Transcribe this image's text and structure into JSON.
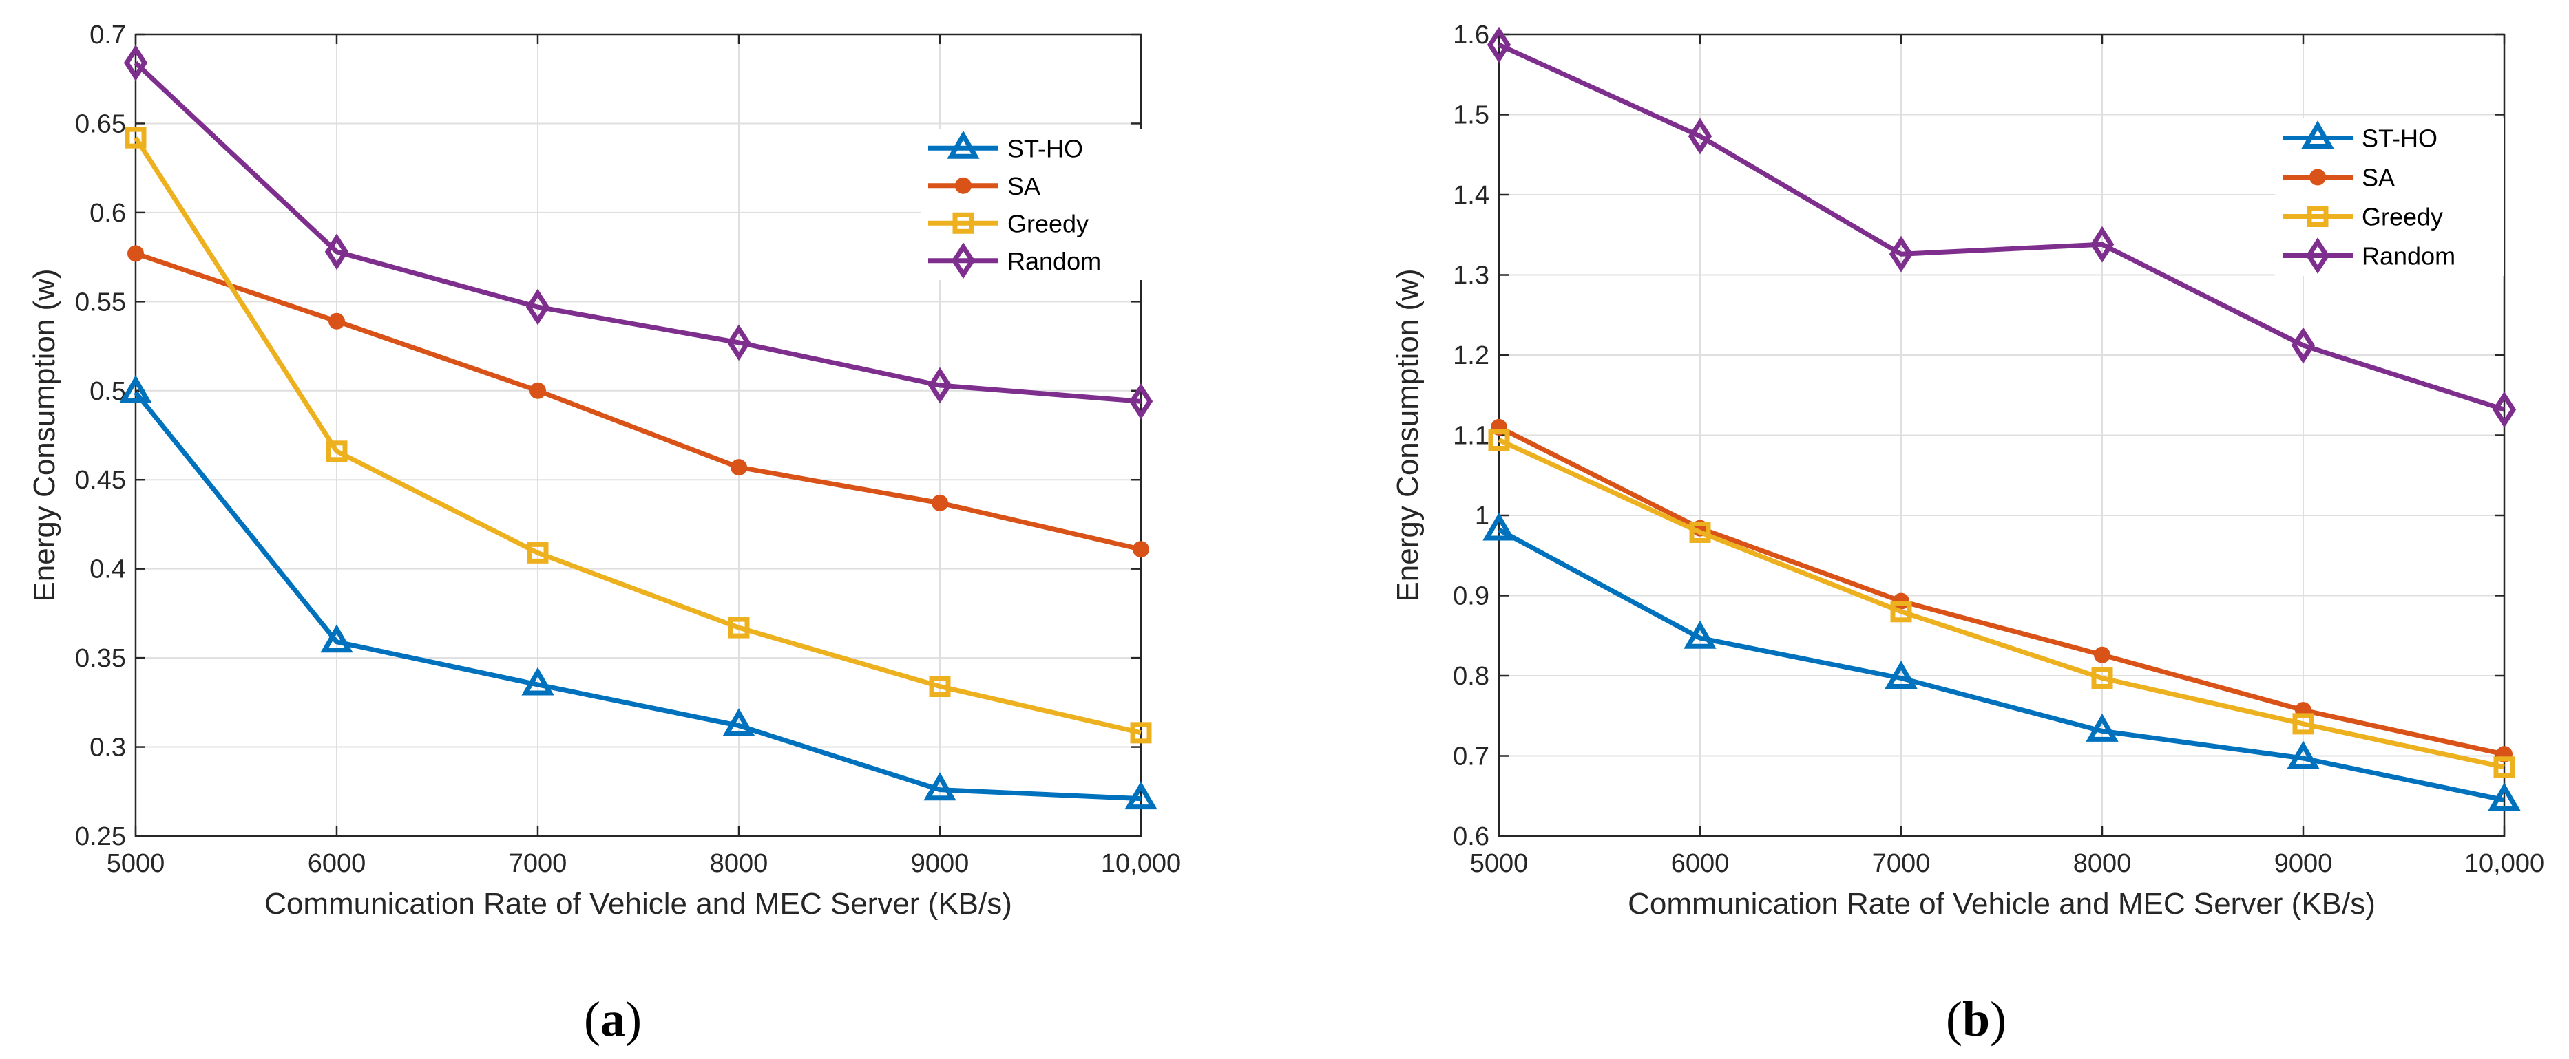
{
  "chart_data": [
    {
      "type": "line",
      "panel": "a",
      "caption_prefix": "(",
      "caption_letter": "a",
      "caption_suffix": ")",
      "xlabel": "Communication Rate of Vehicle and MEC Server (KB/s)",
      "ylabel": "Energy Consumption (w)",
      "x": [
        5000,
        6000,
        7000,
        8000,
        9000,
        10000
      ],
      "xticks": [
        "5000",
        "6000",
        "7000",
        "8000",
        "9000",
        "10,000"
      ],
      "yticks": [
        "0.25",
        "0.3",
        "0.35",
        "0.4",
        "0.45",
        "0.5",
        "0.55",
        "0.6",
        "0.65",
        "0.7"
      ],
      "xlim": [
        5000,
        10000
      ],
      "ylim": [
        0.25,
        0.7
      ],
      "ystep": 0.05,
      "grid": true,
      "legend": "top-right",
      "series": [
        {
          "name": "ST-HO",
          "color": "#0072BD",
          "marker": "triangle",
          "values": [
            0.499,
            0.359,
            0.335,
            0.312,
            0.276,
            0.271
          ]
        },
        {
          "name": "SA",
          "color": "#D95319",
          "marker": "circle",
          "values": [
            0.577,
            0.539,
            0.5,
            0.457,
            0.437,
            0.411
          ]
        },
        {
          "name": "Greedy",
          "color": "#EDB120",
          "marker": "square",
          "values": [
            0.642,
            0.466,
            0.409,
            0.367,
            0.334,
            0.308
          ]
        },
        {
          "name": "Random",
          "color": "#7E2F8E",
          "marker": "diamond",
          "values": [
            0.684,
            0.578,
            0.547,
            0.527,
            0.503,
            0.494
          ]
        }
      ]
    },
    {
      "type": "line",
      "panel": "b",
      "caption_prefix": "(",
      "caption_letter": "b",
      "caption_suffix": ")",
      "xlabel": "Communication Rate of Vehicle and MEC Server (KB/s)",
      "ylabel": "Energy Consumption (w)",
      "x": [
        5000,
        6000,
        7000,
        8000,
        9000,
        10000
      ],
      "xticks": [
        "5000",
        "6000",
        "7000",
        "8000",
        "9000",
        "10,000"
      ],
      "yticks": [
        "0.6",
        "0.7",
        "0.8",
        "0.9",
        "1",
        "1.1",
        "1.2",
        "1.3",
        "1.4",
        "1.5",
        "1.6"
      ],
      "xlim": [
        5000,
        10000
      ],
      "ylim": [
        0.6,
        1.6
      ],
      "ystep": 0.1,
      "grid": true,
      "legend": "top-right",
      "series": [
        {
          "name": "ST-HO",
          "color": "#0072BD",
          "marker": "triangle",
          "values": [
            0.982,
            0.847,
            0.797,
            0.731,
            0.697,
            0.645
          ]
        },
        {
          "name": "SA",
          "color": "#D95319",
          "marker": "circle",
          "values": [
            1.11,
            0.984,
            0.893,
            0.826,
            0.757,
            0.702
          ]
        },
        {
          "name": "Greedy",
          "color": "#EDB120",
          "marker": "square",
          "values": [
            1.094,
            0.979,
            0.88,
            0.797,
            0.74,
            0.686
          ]
        },
        {
          "name": "Random",
          "color": "#7E2F8E",
          "marker": "diamond",
          "values": [
            1.587,
            1.473,
            1.326,
            1.338,
            1.212,
            1.132
          ]
        }
      ]
    }
  ]
}
